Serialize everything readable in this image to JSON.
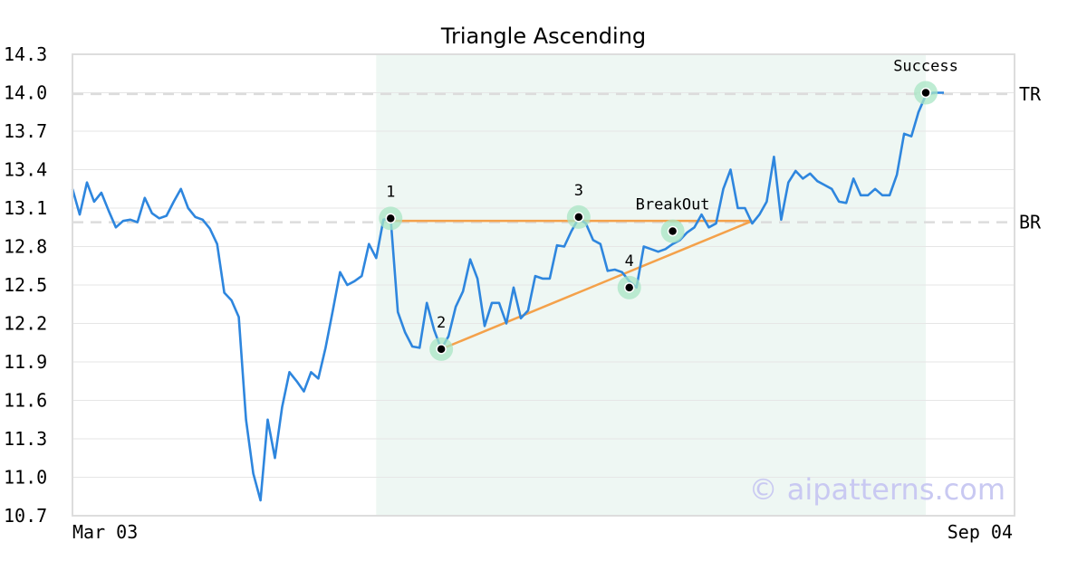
{
  "chart_data": {
    "type": "line",
    "title": "Triangle Ascending",
    "xlabel": "",
    "ylabel": "",
    "ylim": [
      10.7,
      14.3
    ],
    "yticks": [
      "14.3",
      "14.0",
      "13.7",
      "13.4",
      "13.1",
      "12.8",
      "12.5",
      "12.2",
      "11.9",
      "11.6",
      "11.3",
      "11.0",
      "10.7"
    ],
    "x_start_label": "Mar 03",
    "x_end_label": "Sep 04",
    "grid": true,
    "series": [
      {
        "values": [
          13.25,
          13.05,
          13.3,
          13.15,
          13.22,
          13.08,
          12.95,
          13.0,
          13.01,
          12.99,
          13.18,
          13.06,
          13.02,
          13.04,
          13.15,
          13.25,
          13.1,
          13.03,
          13.01,
          12.94,
          12.82,
          12.44,
          12.38,
          12.25,
          11.45,
          11.03,
          10.82,
          11.45,
          11.15,
          11.55,
          11.82,
          11.75,
          11.67,
          11.82,
          11.77,
          12.01,
          12.3,
          12.6,
          12.5,
          12.53,
          12.57,
          12.82,
          12.71,
          13.01,
          13.02,
          12.29,
          12.13,
          12.02,
          12.01,
          12.36,
          12.15,
          12.0,
          12.1,
          12.33,
          12.45,
          12.7,
          12.55,
          12.18,
          12.36,
          12.36,
          12.2,
          12.48,
          12.24,
          12.3,
          12.57,
          12.55,
          12.55,
          12.81,
          12.8,
          12.92,
          13.02,
          12.98,
          12.85,
          12.82,
          12.61,
          12.62,
          12.6,
          12.53,
          12.48,
          12.8,
          12.78,
          12.76,
          12.78,
          12.82,
          12.85,
          12.91,
          12.95,
          13.05,
          12.95,
          12.98,
          13.25,
          13.4,
          13.1,
          13.1,
          12.98,
          13.05,
          13.15,
          13.5,
          13.01,
          13.3,
          13.39,
          13.33,
          13.37,
          13.31,
          13.28,
          13.25,
          13.15,
          13.14,
          13.33,
          13.2,
          13.2,
          13.25,
          13.2,
          13.2,
          13.36,
          13.68,
          13.66,
          13.85,
          13.98,
          14.0
        ]
      }
    ],
    "highlight_region": {
      "start_index": 42,
      "end_index": 118
    },
    "levels": [
      {
        "label": "TR",
        "value": 13.99
      },
      {
        "label": "BR",
        "value": 12.99
      }
    ],
    "trendlines": [
      {
        "points": [
          {
            "index": 44,
            "value": 13.0
          },
          {
            "index": 94,
            "value": 13.0
          }
        ]
      },
      {
        "points": [
          {
            "index": 51,
            "value": 12.0
          },
          {
            "index": 94,
            "value": 13.0
          }
        ]
      }
    ],
    "annotations": [
      {
        "label": "1",
        "index": 44,
        "value": 13.02
      },
      {
        "label": "2",
        "index": 51,
        "value": 12.0
      },
      {
        "label": "3",
        "index": 70,
        "value": 13.03
      },
      {
        "label": "4",
        "index": 77,
        "value": 12.48
      },
      {
        "label": "BreakOut",
        "index": 83,
        "value": 12.92
      },
      {
        "label": "Success",
        "index": 118,
        "value": 14.0
      }
    ],
    "watermark": "© aipatterns.com"
  }
}
